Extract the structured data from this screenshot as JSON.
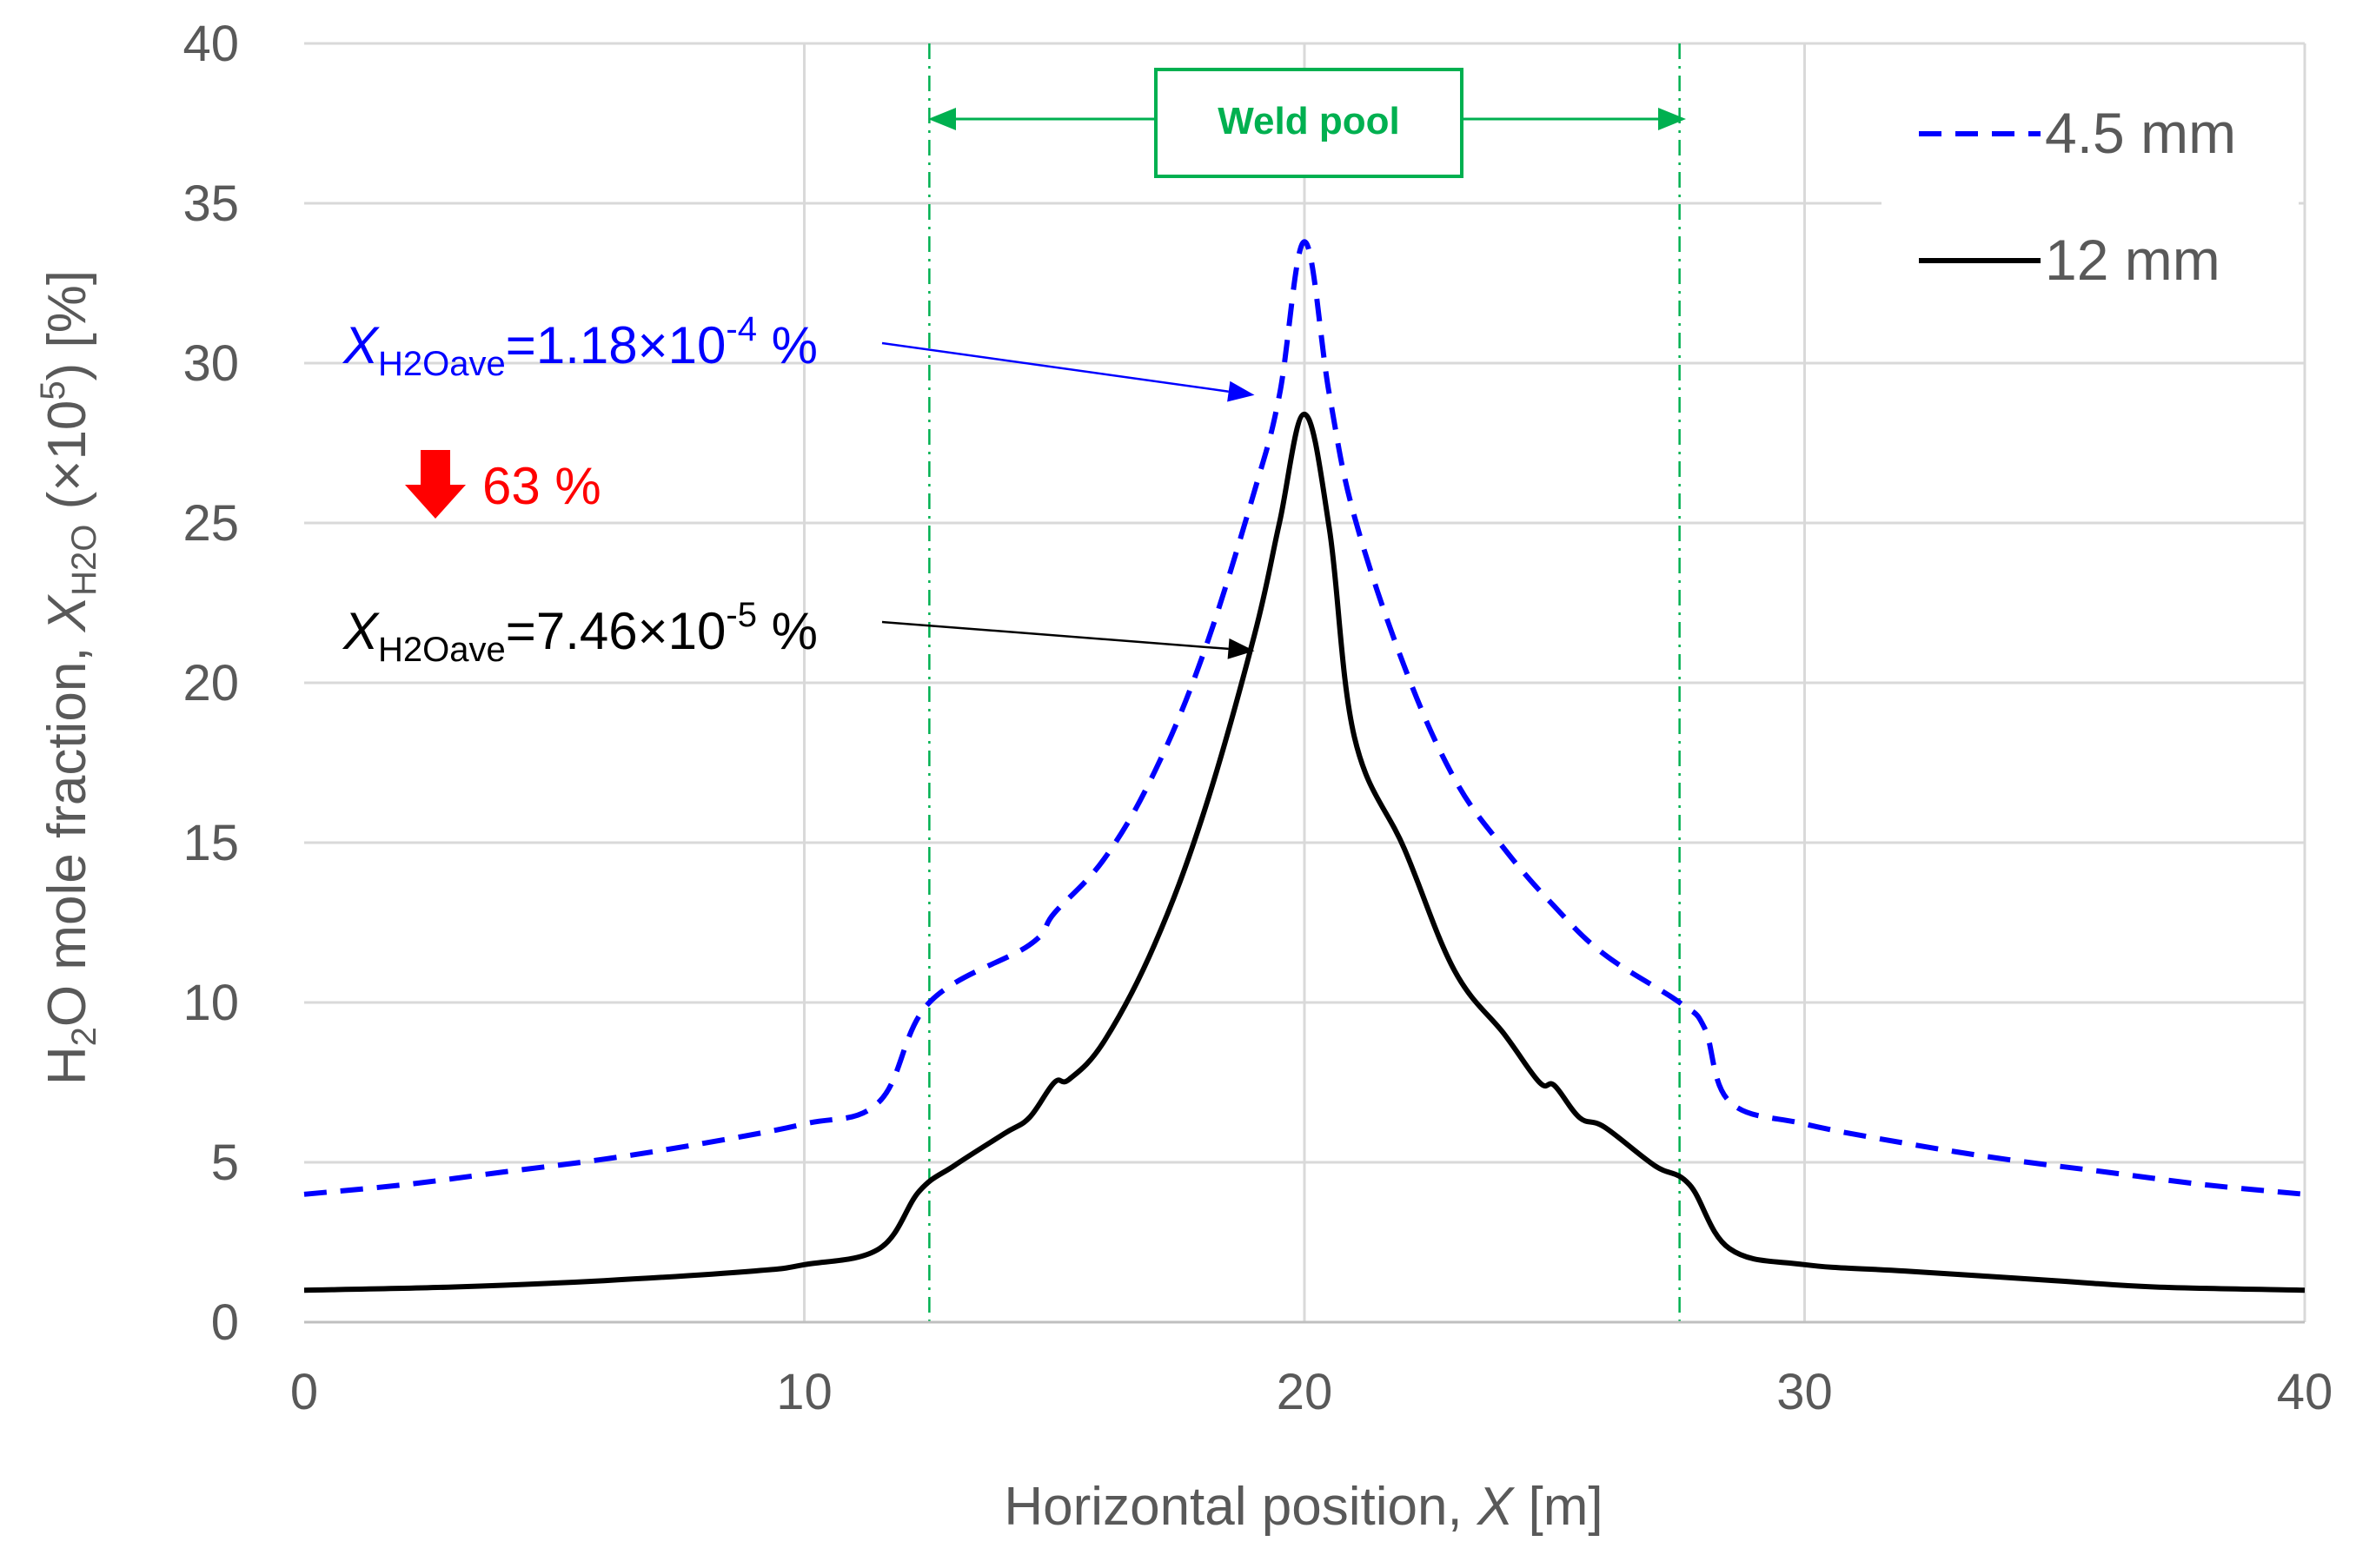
{
  "chart_data": {
    "type": "line",
    "xlabel_prefix": "Horizontal position, ",
    "xlabel_var": "X",
    "xlabel_unit": " [m]",
    "ylabel_pre": "H",
    "ylabel_sub2": "2",
    "ylabel_mid": "O mole fraction, ",
    "ylabel_var": "X",
    "ylabel_sub": "H2O",
    "ylabel_post": " (×10",
    "ylabel_sup": "5",
    "ylabel_end": ") [%]",
    "xlim": [
      0,
      40
    ],
    "ylim": [
      0,
      40
    ],
    "xticks": [
      "0",
      "10",
      "20",
      "30",
      "40"
    ],
    "yticks": [
      "0",
      "5",
      "10",
      "15",
      "20",
      "25",
      "30",
      "35",
      "40"
    ],
    "grid": true,
    "legend_position": "top-right",
    "series": [
      {
        "name": "4.5 mm",
        "style": "dashed",
        "color": "#0000ff",
        "x": [
          0,
          2,
          4,
          6,
          8,
          10,
          11.5,
          12.5,
          14.5,
          15,
          16,
          17,
          18,
          19,
          19.5,
          20,
          20.5,
          21,
          22,
          23,
          24,
          25,
          26,
          27.5,
          28,
          28.5,
          30,
          32,
          34,
          36,
          38,
          40
        ],
        "y": [
          4.0,
          4.3,
          4.7,
          5.1,
          5.6,
          6.2,
          6.9,
          10.0,
          11.8,
          12.8,
          14.5,
          17.2,
          21.0,
          26.0,
          29.0,
          33.8,
          29.0,
          25.2,
          20.5,
          17.0,
          14.8,
          13.0,
          11.5,
          10.0,
          9.2,
          6.9,
          6.2,
          5.6,
          5.1,
          4.7,
          4.3,
          4.0
        ]
      },
      {
        "name": "12 mm",
        "style": "solid",
        "color": "#000000",
        "x": [
          0,
          3,
          6,
          9,
          10,
          11.5,
          12.3,
          13,
          14,
          14.5,
          15,
          15.3,
          16,
          17,
          18,
          19,
          19.5,
          20,
          20.5,
          21,
          22,
          23,
          24,
          24.7,
          25,
          25.5,
          26,
          27,
          27.7,
          28.5,
          30,
          32,
          35,
          37,
          40
        ],
        "y": [
          1.0,
          1.1,
          1.3,
          1.6,
          1.8,
          2.3,
          4.1,
          4.9,
          5.9,
          6.4,
          7.5,
          7.6,
          8.8,
          11.8,
          16.0,
          21.5,
          25.0,
          28.4,
          24.8,
          18.3,
          14.8,
          11.0,
          9.0,
          7.5,
          7.4,
          6.4,
          6.1,
          4.9,
          4.3,
          2.3,
          1.8,
          1.6,
          1.3,
          1.1,
          1.0
        ]
      }
    ],
    "weld_pool": {
      "label": "Weld pool",
      "x_start": 12.5,
      "x_end": 27.5
    },
    "annotations": [
      {
        "var": "X",
        "sub": "H2Oave",
        "text": "=1.18×10",
        "sup": "-4",
        "unit": " %",
        "color": "#0000ff",
        "target_x": 19.0,
        "target_y": 29.0
      },
      {
        "var": "X",
        "sub": "H2Oave",
        "text": "=7.46×10",
        "sup": "-5",
        "unit": " %",
        "color": "#000000",
        "target_x": 19.0,
        "target_y": 21.0
      }
    ],
    "reduction": {
      "label": "63 %",
      "color": "#ff0000"
    }
  }
}
